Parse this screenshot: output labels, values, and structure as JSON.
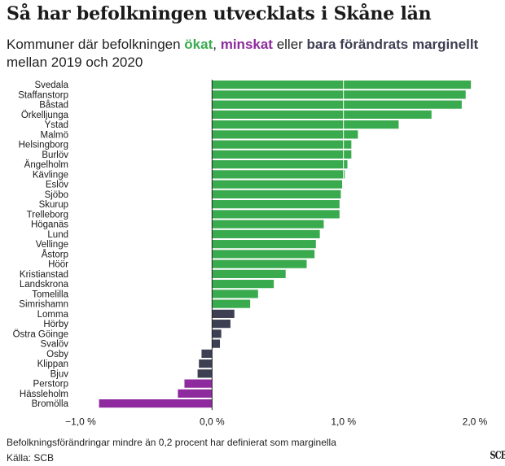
{
  "title": "Så har befolkningen utvecklats i Skåne län",
  "subtitle": {
    "part1": "Kommuner där befolkningen ",
    "increased": "ökat",
    "part2": ", ",
    "decreased": "minskat",
    "part3": " eller ",
    "marginal": "bara förändrats marginellt",
    "part4": " mellan 2019 och 2020"
  },
  "colors": {
    "increased": "#3aaa4f",
    "decreased": "#8e2a9e",
    "marginal": "#3d3f52"
  },
  "chart_data": {
    "type": "bar",
    "orientation": "horizontal",
    "categories": [
      "Svedala",
      "Staffanstorp",
      "Båstad",
      "Örkelljunga",
      "Ystad",
      "Malmö",
      "Helsingborg",
      "Burlöv",
      "Ängelholm",
      "Kävlinge",
      "Eslöv",
      "Sjöbo",
      "Skurup",
      "Trelleborg",
      "Höganäs",
      "Lund",
      "Vellinge",
      "Åstorp",
      "Höör",
      "Kristianstad",
      "Landskrona",
      "Tomelilla",
      "Simrishamn",
      "Lomma",
      "Hörby",
      "Östra Göinge",
      "Svalöv",
      "Osby",
      "Klippan",
      "Bjuv",
      "Perstorp",
      "Hässleholm",
      "Bromölla"
    ],
    "values": [
      1.97,
      1.93,
      1.9,
      1.67,
      1.42,
      1.11,
      1.06,
      1.06,
      1.03,
      1.01,
      0.99,
      0.98,
      0.97,
      0.97,
      0.85,
      0.82,
      0.79,
      0.78,
      0.72,
      0.56,
      0.47,
      0.35,
      0.29,
      0.17,
      0.14,
      0.07,
      0.06,
      -0.08,
      -0.1,
      -0.11,
      -0.21,
      -0.26,
      -0.86
    ],
    "groups": [
      "increased",
      "increased",
      "increased",
      "increased",
      "increased",
      "increased",
      "increased",
      "increased",
      "increased",
      "increased",
      "increased",
      "increased",
      "increased",
      "increased",
      "increased",
      "increased",
      "increased",
      "increased",
      "increased",
      "increased",
      "increased",
      "increased",
      "increased",
      "marginal",
      "marginal",
      "marginal",
      "marginal",
      "marginal",
      "marginal",
      "marginal",
      "decreased",
      "decreased",
      "decreased"
    ],
    "xlim": [
      -1.0,
      2.0
    ],
    "ticks": [
      -1.0,
      0.0,
      1.0,
      2.0
    ],
    "tick_labels": [
      "−1,0 %",
      "0,0 %",
      "1,0 %",
      "2,0 %"
    ],
    "grid": true
  },
  "footnote": "Befolkningsförändringar mindre än 0,2 procent har definierat som marginella",
  "source": "Källa: SCB",
  "logo": "SCB"
}
